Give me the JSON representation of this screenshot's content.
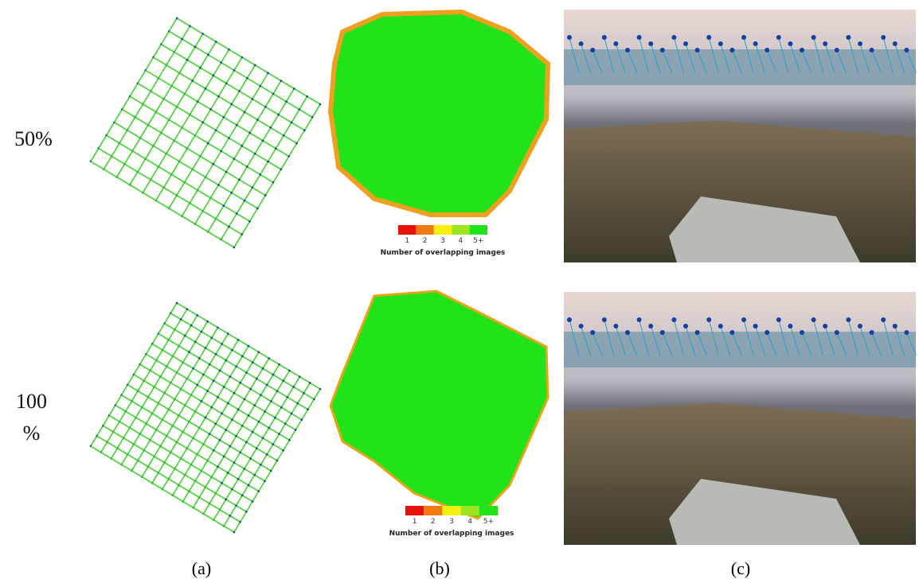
{
  "rows": [
    {
      "label": "50%",
      "legend": {
        "ticks": [
          "1",
          "2",
          "3",
          "4",
          "5+"
        ],
        "title": "Number of overlapping images"
      }
    },
    {
      "label": "100 %",
      "legend": {
        "ticks": [
          "1",
          "2",
          "3",
          "4",
          "5+"
        ],
        "title": "Number of overlapping images"
      }
    }
  ],
  "captions": [
    "(a)",
    "(b)",
    "(c)"
  ]
}
